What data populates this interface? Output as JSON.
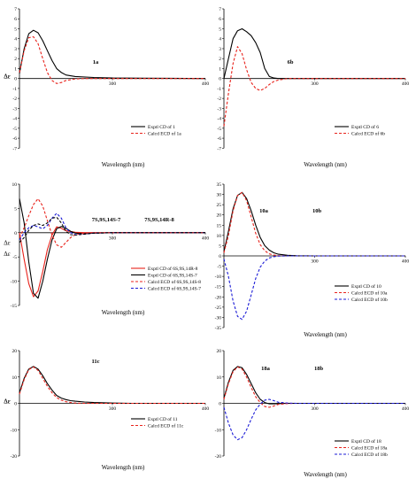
{
  "chart_data": [
    {
      "type": "line",
      "xlabel": "Wavelength (nm)",
      "ylabel": "Δε",
      "xlim": [
        200,
        400
      ],
      "ylim": [
        -7,
        7
      ],
      "yticks": [
        7,
        6,
        5,
        4,
        3,
        2,
        1,
        0,
        -1,
        -2,
        -3,
        -4,
        -5,
        -6,
        -7
      ],
      "xticks": [
        300,
        400
      ],
      "structure_labels": [
        "1a"
      ],
      "series": [
        {
          "name": "Exptl CD of 1",
          "color": "#000000",
          "dash": "solid",
          "x": [
            200,
            205,
            210,
            215,
            220,
            225,
            230,
            235,
            240,
            245,
            250,
            260,
            280,
            300,
            330,
            360,
            400
          ],
          "y": [
            0.5,
            3.0,
            4.5,
            4.85,
            4.6,
            3.8,
            2.8,
            1.8,
            1.0,
            0.6,
            0.35,
            0.2,
            0.1,
            0.05,
            0.03,
            0.02,
            0
          ]
        },
        {
          "name": "Calcd ECD of 1a",
          "color": "#e8221b",
          "dash": "dashed",
          "x": [
            200,
            205,
            210,
            215,
            220,
            225,
            230,
            235,
            240,
            245,
            250,
            260,
            270,
            290,
            320,
            400
          ],
          "y": [
            0.6,
            2.8,
            4.1,
            4.2,
            3.5,
            2.0,
            0.6,
            -0.2,
            -0.5,
            -0.4,
            -0.2,
            -0.05,
            0,
            0,
            0,
            0
          ]
        }
      ]
    },
    {
      "type": "line",
      "xlabel": "Wavelength (nm)",
      "ylabel": "Δε",
      "xlim": [
        200,
        400
      ],
      "ylim": [
        -7,
        7
      ],
      "yticks": [
        7,
        6,
        5,
        4,
        3,
        2,
        1,
        0,
        -1,
        -2,
        -3,
        -4,
        -5,
        -6,
        -7
      ],
      "xticks": [
        300,
        400
      ],
      "structure_labels": [
        "6b"
      ],
      "series": [
        {
          "name": "Exptl CD of 6",
          "color": "#000000",
          "dash": "solid",
          "x": [
            200,
            205,
            210,
            215,
            220,
            225,
            230,
            235,
            240,
            245,
            250,
            255,
            260,
            270,
            300,
            400
          ],
          "y": [
            0,
            2.0,
            4.0,
            4.8,
            5.0,
            4.7,
            4.3,
            3.6,
            2.6,
            1.0,
            0.2,
            0.05,
            0,
            0,
            0,
            0
          ]
        },
        {
          "name": "Calcd ECD of 6b",
          "color": "#e8221b",
          "dash": "dashed",
          "x": [
            200,
            205,
            210,
            215,
            220,
            225,
            230,
            235,
            240,
            245,
            250,
            255,
            260,
            270,
            280,
            300,
            400
          ],
          "y": [
            -4.8,
            -1.5,
            1.5,
            3.2,
            2.5,
            0.9,
            -0.4,
            -1.0,
            -1.2,
            -1.0,
            -0.6,
            -0.3,
            -0.15,
            0,
            0,
            0,
            0
          ]
        }
      ]
    },
    {
      "type": "line",
      "xlabel": "Wavelength (nm)",
      "ylabel": "Δε",
      "xlim": [
        200,
        400
      ],
      "ylim": [
        -15,
        10
      ],
      "yticks": [
        10,
        5,
        0,
        -5,
        -10,
        -15
      ],
      "xticks": [
        300,
        400
      ],
      "structure_labels": [
        "7S,9S,14S-7",
        "7S,9S,14R-8"
      ],
      "series": [
        {
          "name": "Exptl CD of 6S,9S,14R-8",
          "color": "#e8221b",
          "dash": "solid",
          "x": [
            200,
            205,
            210,
            215,
            220,
            225,
            230,
            235,
            240,
            245,
            250,
            260,
            270,
            280,
            300,
            400
          ],
          "y": [
            0,
            -5.5,
            -10.5,
            -13.2,
            -12.0,
            -8.0,
            -3.5,
            -0.5,
            1.2,
            0.9,
            0.4,
            0.1,
            0,
            0,
            0,
            0
          ]
        },
        {
          "name": "Exptl CD of 6S,9S,14S-7",
          "color": "#000000",
          "dash": "solid",
          "x": [
            200,
            205,
            210,
            215,
            220,
            225,
            230,
            235,
            240,
            245,
            250,
            255,
            260,
            270,
            280,
            300,
            400
          ],
          "y": [
            7.0,
            2.0,
            -6.0,
            -12.5,
            -13.5,
            -10.0,
            -5.5,
            -1.5,
            0.8,
            1.3,
            0.9,
            0.3,
            -0.1,
            -0.2,
            -0.1,
            0,
            0
          ]
        },
        {
          "name": "Calcd ECD of 6S,9S,14S-8",
          "color": "#e8221b",
          "dash": "dashed",
          "x": [
            200,
            205,
            210,
            215,
            220,
            225,
            230,
            235,
            240,
            245,
            250,
            255,
            260,
            270,
            280,
            300,
            400
          ],
          "y": [
            -1.0,
            1.0,
            3.5,
            5.8,
            7.0,
            5.5,
            2.5,
            -0.5,
            -2.5,
            -3.0,
            -2.0,
            -1.0,
            -0.4,
            -0.1,
            0,
            0,
            0
          ]
        },
        {
          "name": "Calcd ECD of 6S,9S,14S-7",
          "color": "#1a1ad6",
          "dash": "dashed",
          "x": [
            200,
            205,
            210,
            215,
            220,
            225,
            230,
            235,
            240,
            245,
            250,
            255,
            260,
            270,
            280,
            300,
            400
          ],
          "y": [
            -1.5,
            0,
            1.0,
            1.5,
            1.2,
            0.8,
            1.5,
            3.0,
            4.0,
            3.0,
            1.0,
            0,
            -0.4,
            -0.3,
            -0.1,
            0,
            0
          ]
        },
        {
          "name": "",
          "color": "#000000",
          "dash": "dashed",
          "x": [
            200,
            205,
            210,
            215,
            220,
            225,
            230,
            235,
            240,
            245,
            250,
            255,
            260,
            270,
            280,
            300,
            400
          ],
          "y": [
            -2.0,
            -1.0,
            0.5,
            1.5,
            1.8,
            1.5,
            2.0,
            3.0,
            3.2,
            2.0,
            0.3,
            -0.4,
            -0.5,
            -0.3,
            -0.1,
            0,
            0
          ]
        }
      ]
    },
    {
      "type": "line",
      "xlabel": "Wavelength (nm)",
      "ylabel": "Δε",
      "xlim": [
        200,
        400
      ],
      "ylim": [
        -35,
        35
      ],
      "yticks": [
        35,
        30,
        25,
        20,
        15,
        10,
        5,
        0,
        -5,
        -10,
        -15,
        -20,
        -25,
        -30,
        -35
      ],
      "xticks": [
        300,
        400
      ],
      "structure_labels": [
        "10a",
        "10b"
      ],
      "series": [
        {
          "name": "Exptl CD of 10",
          "color": "#000000",
          "dash": "solid",
          "x": [
            200,
            205,
            210,
            215,
            220,
            225,
            230,
            235,
            240,
            245,
            250,
            255,
            260,
            270,
            280,
            300,
            400
          ],
          "y": [
            2.0,
            12.0,
            23.0,
            29.5,
            31.0,
            28.0,
            22.0,
            15.0,
            9.0,
            5.0,
            2.8,
            1.5,
            0.8,
            0.3,
            0.1,
            0,
            0
          ]
        },
        {
          "name": "Calcd ECD of 10a",
          "color": "#e8221b",
          "dash": "dashed",
          "x": [
            200,
            205,
            210,
            215,
            220,
            225,
            230,
            235,
            240,
            245,
            250,
            255,
            260,
            270,
            280,
            300,
            400
          ],
          "y": [
            1.5,
            10.0,
            22.0,
            29.5,
            31.0,
            27.0,
            19.0,
            11.0,
            5.5,
            2.5,
            1.0,
            0.4,
            0.1,
            0,
            0,
            0,
            0
          ]
        },
        {
          "name": "Calcd ECD of 10b",
          "color": "#1a1ad6",
          "dash": "dashed",
          "x": [
            200,
            205,
            210,
            215,
            220,
            225,
            230,
            235,
            240,
            245,
            250,
            255,
            260,
            270,
            280,
            300,
            400
          ],
          "y": [
            -1.5,
            -10.0,
            -22.0,
            -29.5,
            -31.0,
            -27.0,
            -19.0,
            -11.0,
            -5.5,
            -2.5,
            -1.0,
            -0.4,
            -0.1,
            0,
            0,
            0,
            0
          ]
        }
      ]
    },
    {
      "type": "line",
      "xlabel": "Wavelength (nm)",
      "ylabel": "Δε",
      "xlim": [
        200,
        400
      ],
      "ylim": [
        -20,
        20
      ],
      "yticks": [
        20,
        10,
        0,
        -10,
        -20
      ],
      "xticks": [
        300,
        400
      ],
      "structure_labels": [
        "11c"
      ],
      "series": [
        {
          "name": "Exptl CD of 11",
          "color": "#000000",
          "dash": "solid",
          "x": [
            200,
            205,
            210,
            215,
            220,
            225,
            230,
            235,
            240,
            245,
            250,
            255,
            260,
            270,
            280,
            300,
            320,
            400
          ],
          "y": [
            4.0,
            9.5,
            13.0,
            14.0,
            13.0,
            10.5,
            7.5,
            5.0,
            3.0,
            2.0,
            1.4,
            1.0,
            0.8,
            0.5,
            0.3,
            0.1,
            0,
            0
          ]
        },
        {
          "name": "Calcd ECD of 11c",
          "color": "#e8221b",
          "dash": "dashed",
          "x": [
            200,
            205,
            210,
            215,
            220,
            225,
            230,
            235,
            240,
            245,
            250,
            255,
            260,
            270,
            280,
            300,
            400
          ],
          "y": [
            3.5,
            9.0,
            12.8,
            13.8,
            12.5,
            9.5,
            6.5,
            4.0,
            2.2,
            1.2,
            0.6,
            0.3,
            0.1,
            0,
            0,
            0,
            0
          ]
        }
      ]
    },
    {
      "type": "line",
      "xlabel": "Wavelength (nm)",
      "ylabel": "Δε",
      "xlim": [
        200,
        400
      ],
      "ylim": [
        -20,
        20
      ],
      "yticks": [
        20,
        10,
        0,
        -10,
        -20
      ],
      "xticks": [
        300,
        400
      ],
      "structure_labels": [
        "18a",
        "18b"
      ],
      "series": [
        {
          "name": "Exptl CD of 18",
          "color": "#000000",
          "dash": "solid",
          "x": [
            200,
            205,
            210,
            215,
            220,
            225,
            230,
            235,
            240,
            245,
            250,
            255,
            260,
            270,
            280,
            300,
            400
          ],
          "y": [
            2.0,
            8.0,
            12.5,
            14.0,
            13.5,
            11.0,
            7.5,
            4.0,
            1.5,
            0.3,
            -0.2,
            -0.2,
            -0.1,
            0,
            0,
            0,
            0
          ]
        },
        {
          "name": "Calcd ECD of 18a",
          "color": "#e8221b",
          "dash": "dashed",
          "x": [
            200,
            205,
            210,
            215,
            220,
            225,
            230,
            235,
            240,
            245,
            250,
            255,
            260,
            270,
            280,
            300,
            400
          ],
          "y": [
            1.5,
            7.5,
            12.0,
            13.8,
            13.0,
            10.0,
            6.0,
            2.5,
            0.3,
            -1.2,
            -1.5,
            -1.0,
            -0.4,
            -0.1,
            0,
            0,
            0
          ]
        },
        {
          "name": "Calcd ECD of 18b",
          "color": "#1a1ad6",
          "dash": "dashed",
          "x": [
            200,
            205,
            210,
            215,
            220,
            225,
            230,
            235,
            240,
            245,
            250,
            255,
            260,
            270,
            280,
            300,
            400
          ],
          "y": [
            -1.5,
            -7.5,
            -12.0,
            -13.8,
            -13.0,
            -10.0,
            -6.0,
            -2.5,
            -0.3,
            1.2,
            1.5,
            1.0,
            0.4,
            0.1,
            0,
            0,
            0
          ]
        }
      ]
    }
  ]
}
